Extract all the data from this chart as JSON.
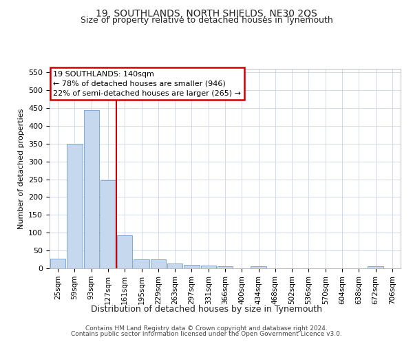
{
  "title": "19, SOUTHLANDS, NORTH SHIELDS, NE30 2QS",
  "subtitle": "Size of property relative to detached houses in Tynemouth",
  "xlabel": "Distribution of detached houses by size in Tynemouth",
  "ylabel": "Number of detached properties",
  "bar_color": "#c5d8ee",
  "bar_edge_color": "#5a8fc6",
  "vline_color": "#cc0000",
  "vline_x": 3.5,
  "annotation_line1": "19 SOUTHLANDS: 140sqm",
  "annotation_line2": "← 78% of detached houses are smaller (946)",
  "annotation_line3": "22% of semi-detached houses are larger (265) →",
  "annotation_box_color": "#cc0000",
  "categories": [
    "25sqm",
    "59sqm",
    "93sqm",
    "127sqm",
    "161sqm",
    "195sqm",
    "229sqm",
    "263sqm",
    "297sqm",
    "331sqm",
    "366sqm",
    "400sqm",
    "434sqm",
    "468sqm",
    "502sqm",
    "536sqm",
    "570sqm",
    "604sqm",
    "638sqm",
    "672sqm",
    "706sqm"
  ],
  "values": [
    28,
    350,
    445,
    248,
    93,
    25,
    25,
    14,
    10,
    7,
    6,
    0,
    5,
    0,
    0,
    0,
    0,
    0,
    0,
    5,
    0
  ],
  "ylim": [
    0,
    560
  ],
  "yticks": [
    0,
    50,
    100,
    150,
    200,
    250,
    300,
    350,
    400,
    450,
    500,
    550
  ],
  "footer_line1": "Contains HM Land Registry data © Crown copyright and database right 2024.",
  "footer_line2": "Contains public sector information licensed under the Open Government Licence v3.0.",
  "bg_color": "#ffffff",
  "grid_color": "#c8d4e8"
}
